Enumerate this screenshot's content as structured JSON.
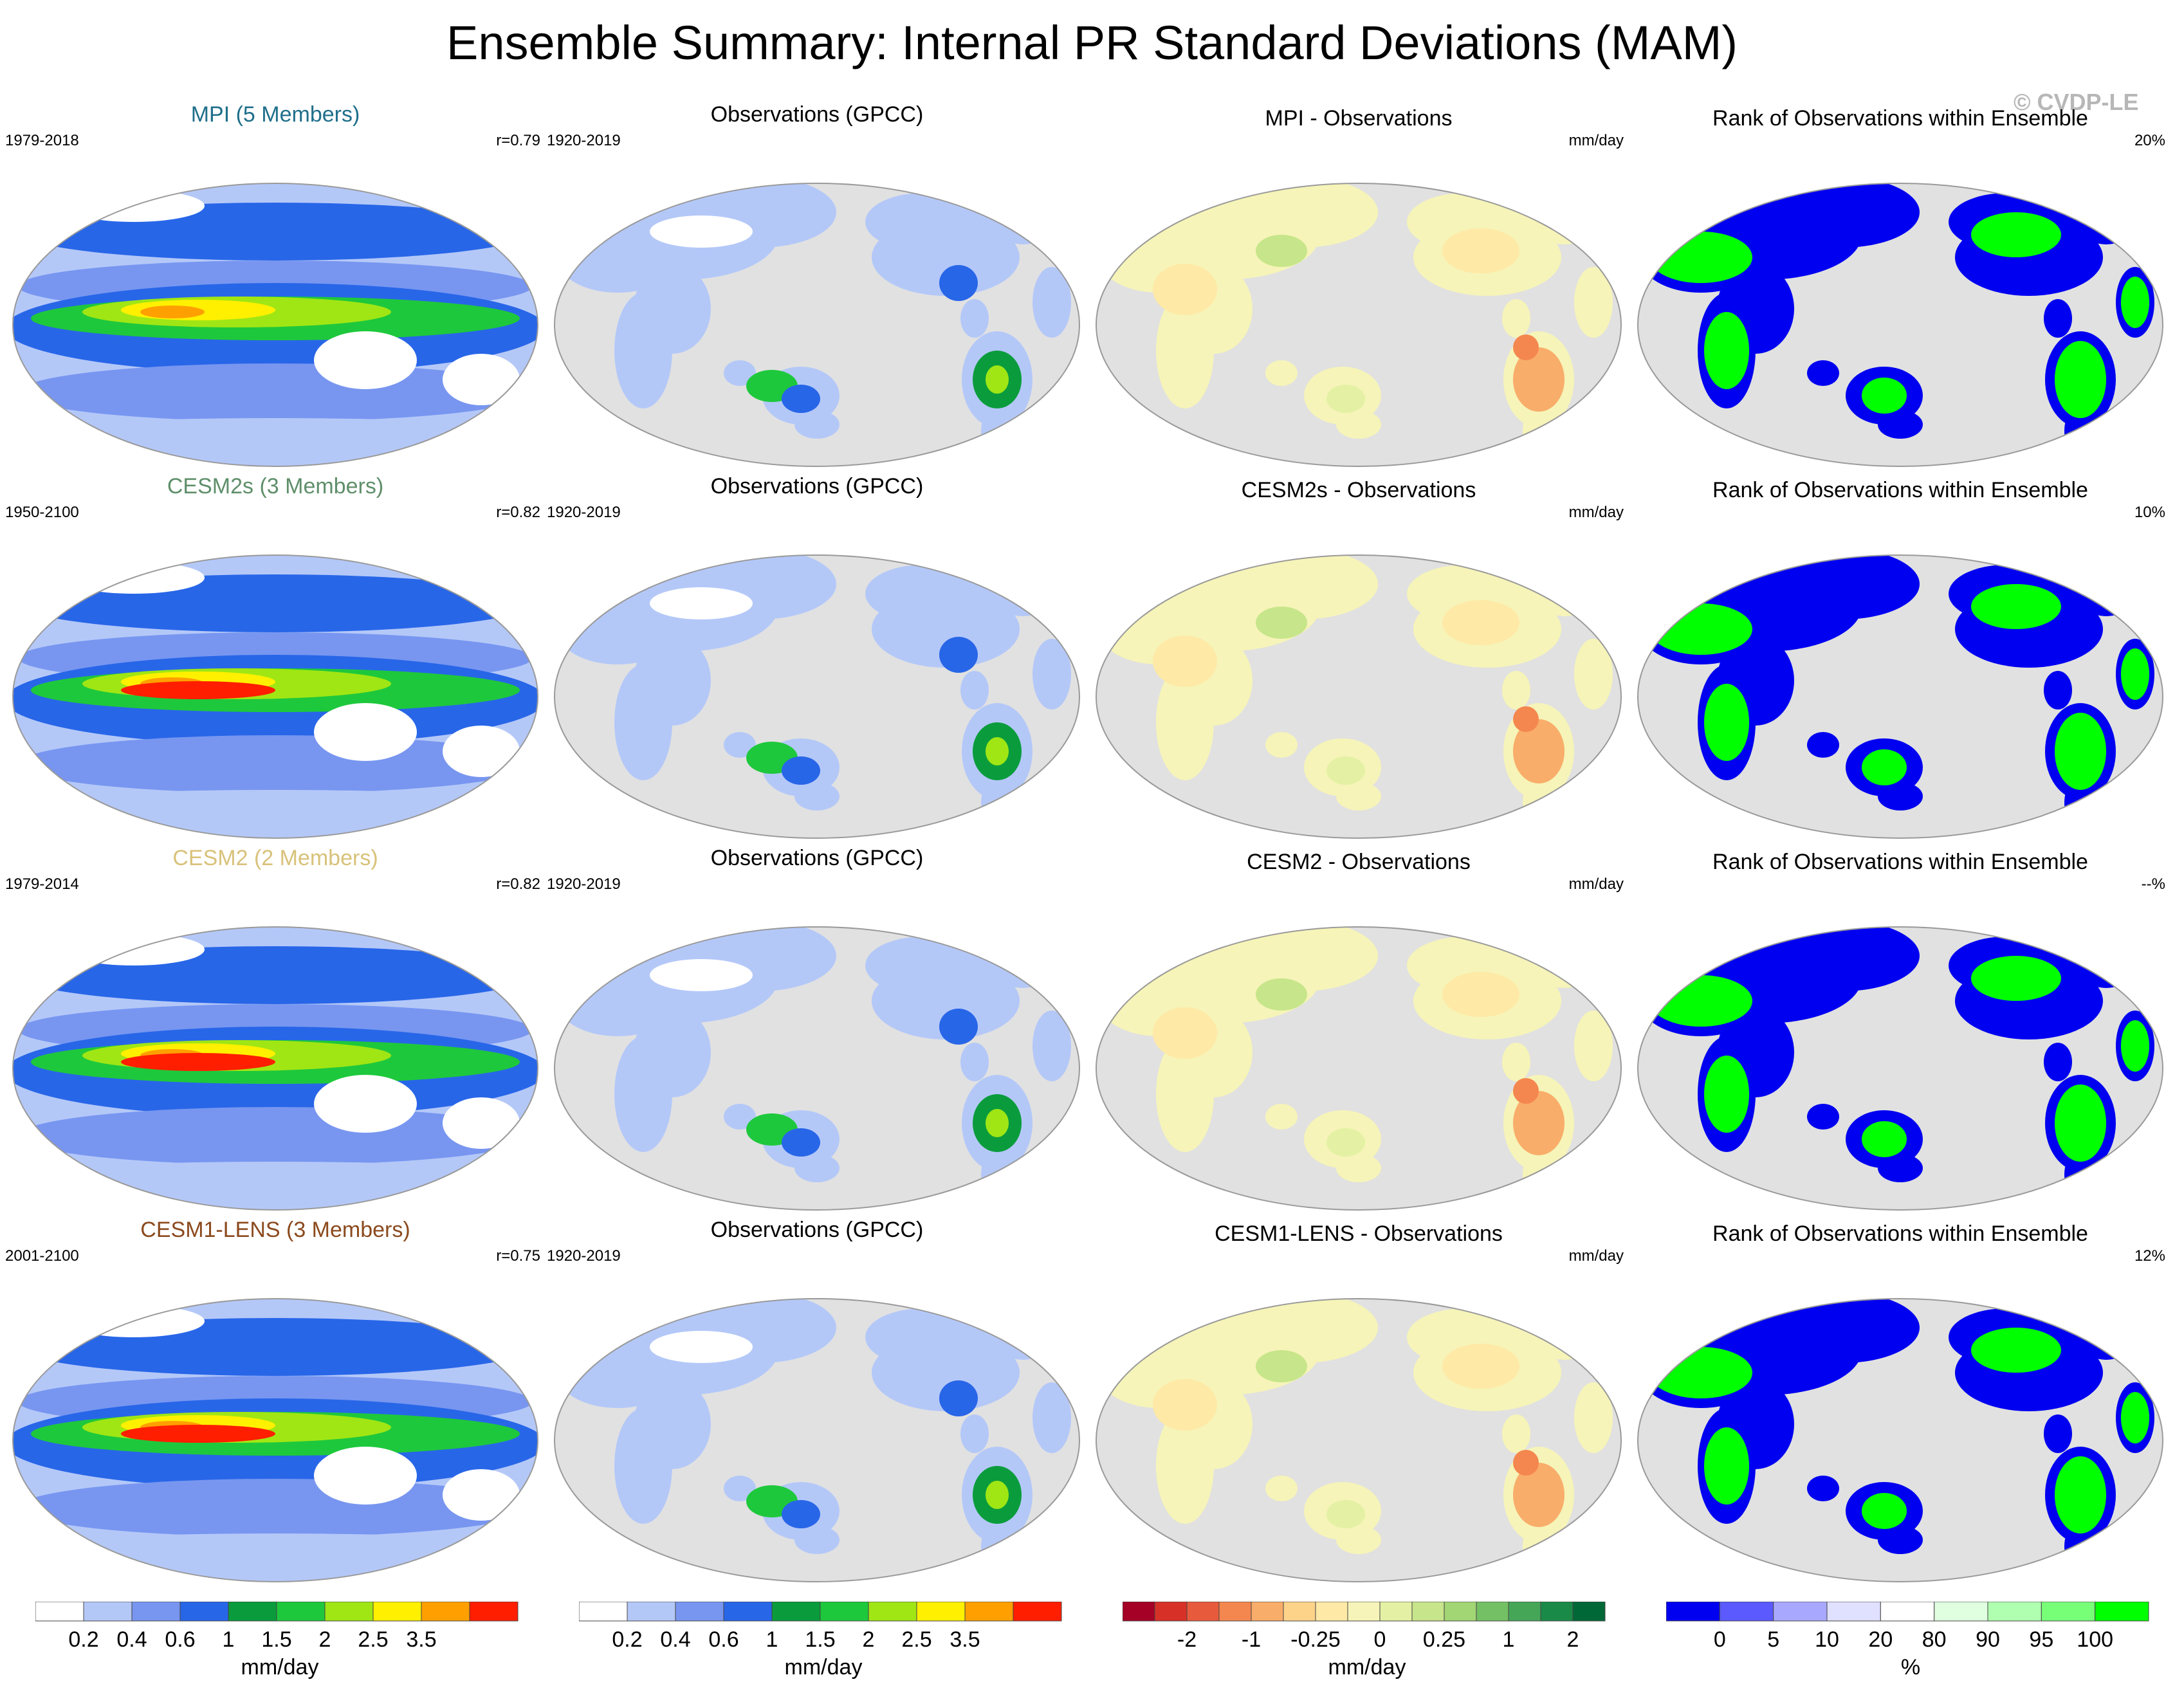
{
  "title": "Ensemble Summary: Internal PR Standard Deviations (MAM)",
  "watermark": "© CVDP-LE",
  "rows": [
    {
      "model_title": "MPI (5 Members)",
      "model_color": "#1f6f8b",
      "model_years": "1979-2018",
      "model_r": "r=0.79",
      "obs_title": "Observations (GPCC)",
      "obs_years": "1920-2019",
      "diff_title": "MPI - Observations",
      "diff_unit": "mm/day",
      "rank_title": "Rank of Observations within Ensemble",
      "rank_pct": "20%"
    },
    {
      "model_title": "CESM2s (3 Members)",
      "model_color": "#5f8f6a",
      "model_years": "1950-2100",
      "model_r": "r=0.82",
      "obs_title": "Observations (GPCC)",
      "obs_years": "1920-2019",
      "diff_title": "CESM2s - Observations",
      "diff_unit": "mm/day",
      "rank_title": "Rank of Observations within Ensemble",
      "rank_pct": "10%"
    },
    {
      "model_title": "CESM2 (2 Members)",
      "model_color": "#d8c27a",
      "model_years": "1979-2014",
      "model_r": "r=0.82",
      "obs_title": "Observations (GPCC)",
      "obs_years": "1920-2019",
      "diff_title": "CESM2 - Observations",
      "diff_unit": "mm/day",
      "rank_title": "Rank of Observations within Ensemble",
      "rank_pct": "--%"
    },
    {
      "model_title": "CESM1-LENS (3 Members)",
      "model_color": "#8b4a1e",
      "model_years": "2001-2100",
      "model_r": "r=0.75",
      "obs_title": "Observations (GPCC)",
      "obs_years": "1920-2019",
      "diff_title": "CESM1-LENS - Observations",
      "diff_unit": "mm/day",
      "rank_title": "Rank of Observations within Ensemble",
      "rank_pct": "12%"
    }
  ],
  "colorbars": [
    {
      "unit": "mm/day",
      "labels": [
        "0.2",
        "0.4",
        "0.6",
        "1",
        "1.5",
        "2",
        "2.5",
        "3.5"
      ],
      "colors": [
        "#ffffff",
        "#b4c8f8",
        "#7896f0",
        "#2866e8",
        "#0a9c3c",
        "#1ec83c",
        "#a0e614",
        "#fff000",
        "#ffa000",
        "#ff1e00"
      ]
    },
    {
      "unit": "mm/day",
      "labels": [
        "0.2",
        "0.4",
        "0.6",
        "1",
        "1.5",
        "2",
        "2.5",
        "3.5"
      ],
      "colors": [
        "#ffffff",
        "#b4c8f8",
        "#7896f0",
        "#2866e8",
        "#0a9c3c",
        "#1ec83c",
        "#a0e614",
        "#fff000",
        "#ffa000",
        "#ff1e00"
      ]
    },
    {
      "unit": "mm/day",
      "labels": [
        "-2",
        "-1",
        "-0.25",
        "0",
        "0.25",
        "1",
        "2"
      ],
      "colors": [
        "#a50026",
        "#d73027",
        "#e85a3c",
        "#f4874f",
        "#f9ad6a",
        "#fdd38a",
        "#fee9a6",
        "#f6f4b8",
        "#e4f1a4",
        "#c7e58a",
        "#a2d574",
        "#74c064",
        "#45a658",
        "#1a8a48",
        "#006837"
      ]
    },
    {
      "unit": "%",
      "labels": [
        "0",
        "5",
        "10",
        "20",
        "80",
        "90",
        "95",
        "100"
      ],
      "colors": [
        "#0000f0",
        "#5a5aff",
        "#a8a8ff",
        "#e0e0ff",
        "#ffffff",
        "#e0ffe0",
        "#b0ffb0",
        "#78ff78",
        "#00ff00"
      ]
    }
  ],
  "chart_data": {
    "type": "heatmap",
    "title": "Ensemble Summary: Internal PR Standard Deviations (MAM)",
    "projection": "Robinson global map, Pacific-centered",
    "grid": [
      {
        "row": "MPI",
        "model_period": "1979-2018",
        "pattern_correlation": 0.79,
        "obs_period": "1920-2019",
        "rank_percent": 20
      },
      {
        "row": "CESM2s",
        "model_period": "1950-2100",
        "pattern_correlation": 0.82,
        "obs_period": "1920-2019",
        "rank_percent": 10
      },
      {
        "row": "CESM2",
        "model_period": "1979-2014",
        "pattern_correlation": 0.82,
        "obs_period": "1920-2019",
        "rank_percent": null
      },
      {
        "row": "CESM1-LENS",
        "model_period": "2001-2100",
        "pattern_correlation": 0.75,
        "obs_period": "1920-2019",
        "rank_percent": 12
      }
    ],
    "std_levels_mm_day": [
      0.2,
      0.4,
      0.6,
      1,
      1.5,
      2,
      2.5,
      3.5
    ],
    "difference_levels_mm_day": [
      -2,
      -1,
      -0.25,
      0,
      0.25,
      1,
      2
    ],
    "rank_levels_percent": [
      0,
      5,
      10,
      20,
      80,
      90,
      95,
      100
    ]
  }
}
